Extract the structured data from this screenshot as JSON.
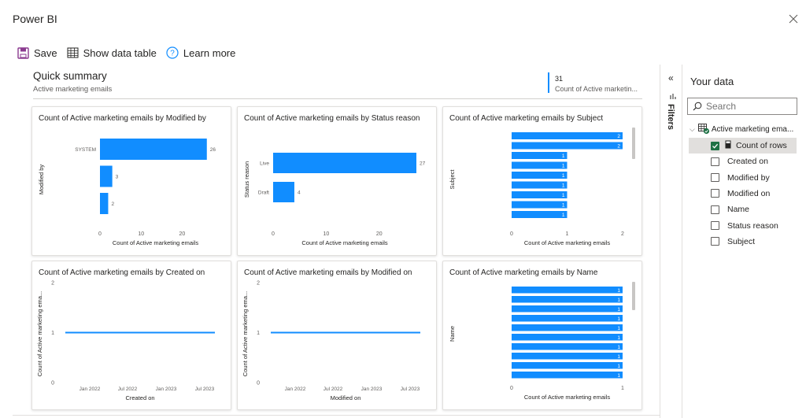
{
  "app": {
    "title": "Power BI"
  },
  "toolbar": {
    "save_label": "Save",
    "show_table_label": "Show data table",
    "learn_more_label": "Learn more"
  },
  "summary": {
    "title": "Quick summary",
    "subtitle": "Active marketing emails",
    "kpi_value": "31",
    "kpi_label": "Count of Active marketin..."
  },
  "filters": {
    "label": "Filters"
  },
  "your_data": {
    "title": "Your data",
    "search_placeholder": "Search",
    "table_name": "Active marketing ema...",
    "fields": [
      {
        "label": "Count of rows",
        "checked": true
      },
      {
        "label": "Created on",
        "checked": false
      },
      {
        "label": "Modified by",
        "checked": false
      },
      {
        "label": "Modified on",
        "checked": false
      },
      {
        "label": "Name",
        "checked": false
      },
      {
        "label": "Status reason",
        "checked": false
      },
      {
        "label": "Subject",
        "checked": false
      }
    ]
  },
  "colors": {
    "accent": "#118dff",
    "check": "#1e7145"
  },
  "chart_data": [
    {
      "type": "bar",
      "orientation": "horizontal",
      "title": "Count of Active marketing emails by Modified by",
      "categories": [
        "SYSTEM",
        "",
        ""
      ],
      "values": [
        26,
        3,
        2
      ],
      "data_labels": [
        "26",
        "3",
        "2"
      ],
      "xlabel": "Count of Active marketing emails",
      "ylabel": "Modified by",
      "xlim": [
        0,
        27
      ],
      "xticks": [
        "0",
        "10",
        "20"
      ],
      "xtick_values": [
        0,
        10,
        20
      ]
    },
    {
      "type": "bar",
      "orientation": "horizontal",
      "title": "Count of Active marketing emails by Status reason",
      "categories": [
        "Live",
        "Draft"
      ],
      "values": [
        27,
        4
      ],
      "data_labels": [
        "27",
        "4"
      ],
      "xlabel": "Count of Active marketing emails",
      "ylabel": "Status reason",
      "xlim": [
        0,
        27
      ],
      "xticks": [
        "0",
        "10",
        "20"
      ],
      "xtick_values": [
        0,
        10,
        20
      ]
    },
    {
      "type": "bar",
      "orientation": "horizontal",
      "title": "Count of Active marketing emails by Subject",
      "categories": [
        "",
        "",
        "",
        "",
        "",
        "",
        "",
        "",
        ""
      ],
      "values": [
        2,
        2,
        1,
        1,
        1,
        1,
        1,
        1,
        1
      ],
      "data_labels": [
        "2",
        "2",
        "1",
        "1",
        "1",
        "1",
        "1",
        "1",
        "1"
      ],
      "xlabel": "Count of Active marketing emails",
      "ylabel": "Subject",
      "xlim": [
        0,
        2
      ],
      "xticks": [
        "0",
        "1",
        "2"
      ],
      "xtick_values": [
        0,
        1,
        2
      ]
    },
    {
      "type": "line",
      "title": "Count of Active marketing emails by Created on",
      "x": [
        "Nov 2021",
        "Aug 2023"
      ],
      "values": [
        1,
        1
      ],
      "xlabel": "Created on",
      "ylabel": "Count of Active marketing ema...",
      "ylim": [
        0,
        2
      ],
      "yticks": [
        "0",
        "1",
        "2"
      ],
      "xticks": [
        "Jan 2022",
        "Jul 2022",
        "Jan 2023",
        "Jul 2023"
      ]
    },
    {
      "type": "line",
      "title": "Count of Active marketing emails by Modified on",
      "x": [
        "Nov 2021",
        "Aug 2023"
      ],
      "values": [
        1,
        1
      ],
      "xlabel": "Modified on",
      "ylabel": "Count of Active marketing ema...",
      "ylim": [
        0,
        2
      ],
      "yticks": [
        "0",
        "1",
        "2"
      ],
      "xticks": [
        "Jan 2022",
        "Jul 2022",
        "Jan 2023",
        "Jul 2023"
      ]
    },
    {
      "type": "bar",
      "orientation": "horizontal",
      "title": "Count of Active marketing emails by Name",
      "categories": [
        "",
        "",
        "",
        "",
        "",
        "",
        "",
        "",
        "",
        ""
      ],
      "values": [
        1,
        1,
        1,
        1,
        1,
        1,
        1,
        1,
        1,
        1
      ],
      "data_labels": [
        "1",
        "1",
        "1",
        "1",
        "1",
        "1",
        "1",
        "1",
        "1",
        "1"
      ],
      "xlabel": "Count of Active marketing emails",
      "ylabel": "Name",
      "xlim": [
        0,
        1
      ],
      "xticks": [
        "0",
        "1"
      ],
      "xtick_values": [
        0,
        1
      ]
    }
  ]
}
